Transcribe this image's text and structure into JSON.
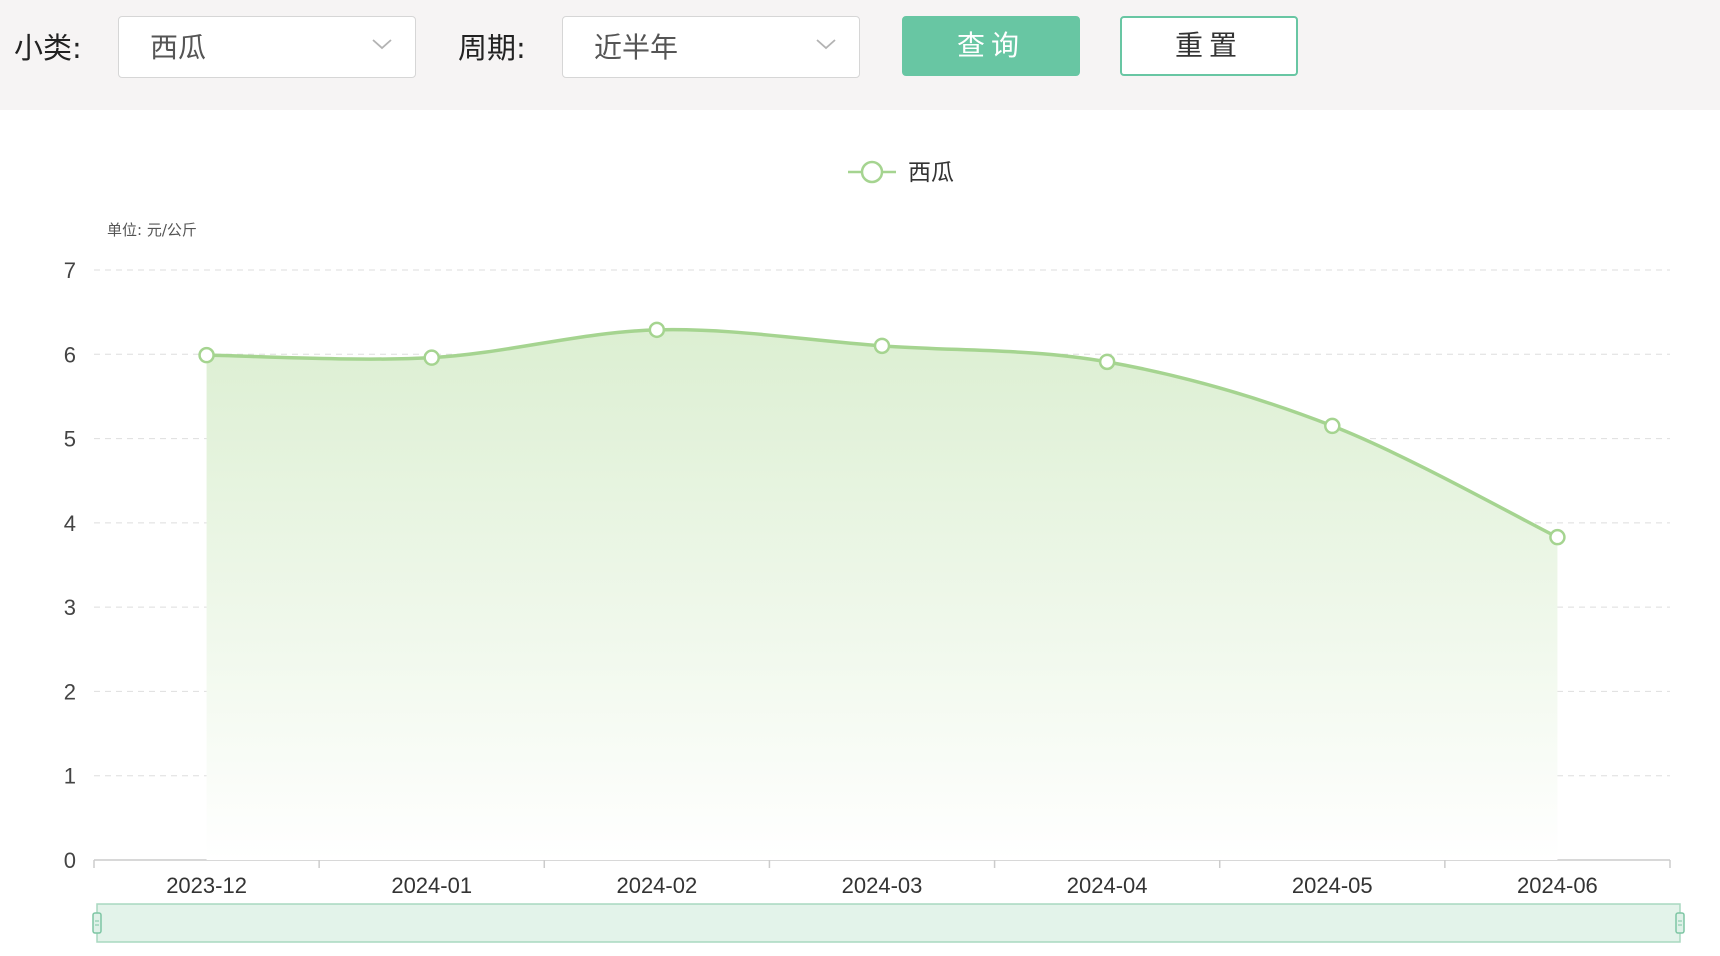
{
  "filters": {
    "category_label": "小类:",
    "category_value": "西瓜",
    "period_label": "周期:",
    "period_value": "近半年",
    "query_button": "查询",
    "reset_button": "重置"
  },
  "chart_data": {
    "type": "area",
    "unit_label": "单位: 元/公斤",
    "categories": [
      "2023-12",
      "2024-01",
      "2024-02",
      "2024-03",
      "2024-04",
      "2024-05",
      "2024-06"
    ],
    "series": [
      {
        "name": "西瓜",
        "values": [
          5.99,
          5.96,
          6.29,
          6.1,
          5.91,
          5.15,
          3.83
        ]
      }
    ],
    "ylim": [
      0,
      7
    ],
    "yticks": [
      0,
      1,
      2,
      3,
      4,
      5,
      6,
      7
    ],
    "grid": true,
    "legend_position": "top-center",
    "smooth": true,
    "data_zoom_slider": true,
    "colors": {
      "line": "#a5d490",
      "area_top": "#dcefd2",
      "grid": "#dedede",
      "axis": "#cccccc",
      "slider_fill": "#e3f3ea",
      "slider_border": "#a8d8c0"
    }
  }
}
